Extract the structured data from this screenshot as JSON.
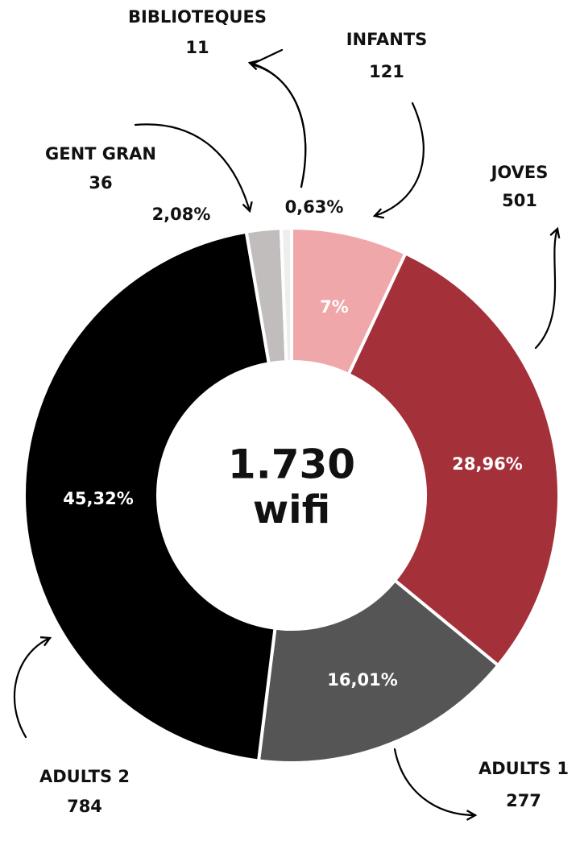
{
  "chart_data": {
    "type": "donut",
    "center_label": "1.730",
    "center_sublabel": "wifi",
    "categories": [
      "INFANTS",
      "JOVES",
      "ADULTS 1",
      "ADULTS 2",
      "GENT GRAN",
      "BIBLIOTEQUES"
    ],
    "counts": [
      121,
      501,
      277,
      784,
      36,
      11
    ],
    "values": [
      7,
      28.96,
      16.01,
      45.32,
      2.08,
      0.63
    ],
    "value_labels": [
      "7%",
      "28,96%",
      "16,01%",
      "45,32%",
      "2,08%",
      "0,63%"
    ],
    "colors": [
      "#f0a7a9",
      "#a4313a",
      "#555555",
      "#000000",
      "#c1bdbc",
      "#eeeeee"
    ]
  }
}
